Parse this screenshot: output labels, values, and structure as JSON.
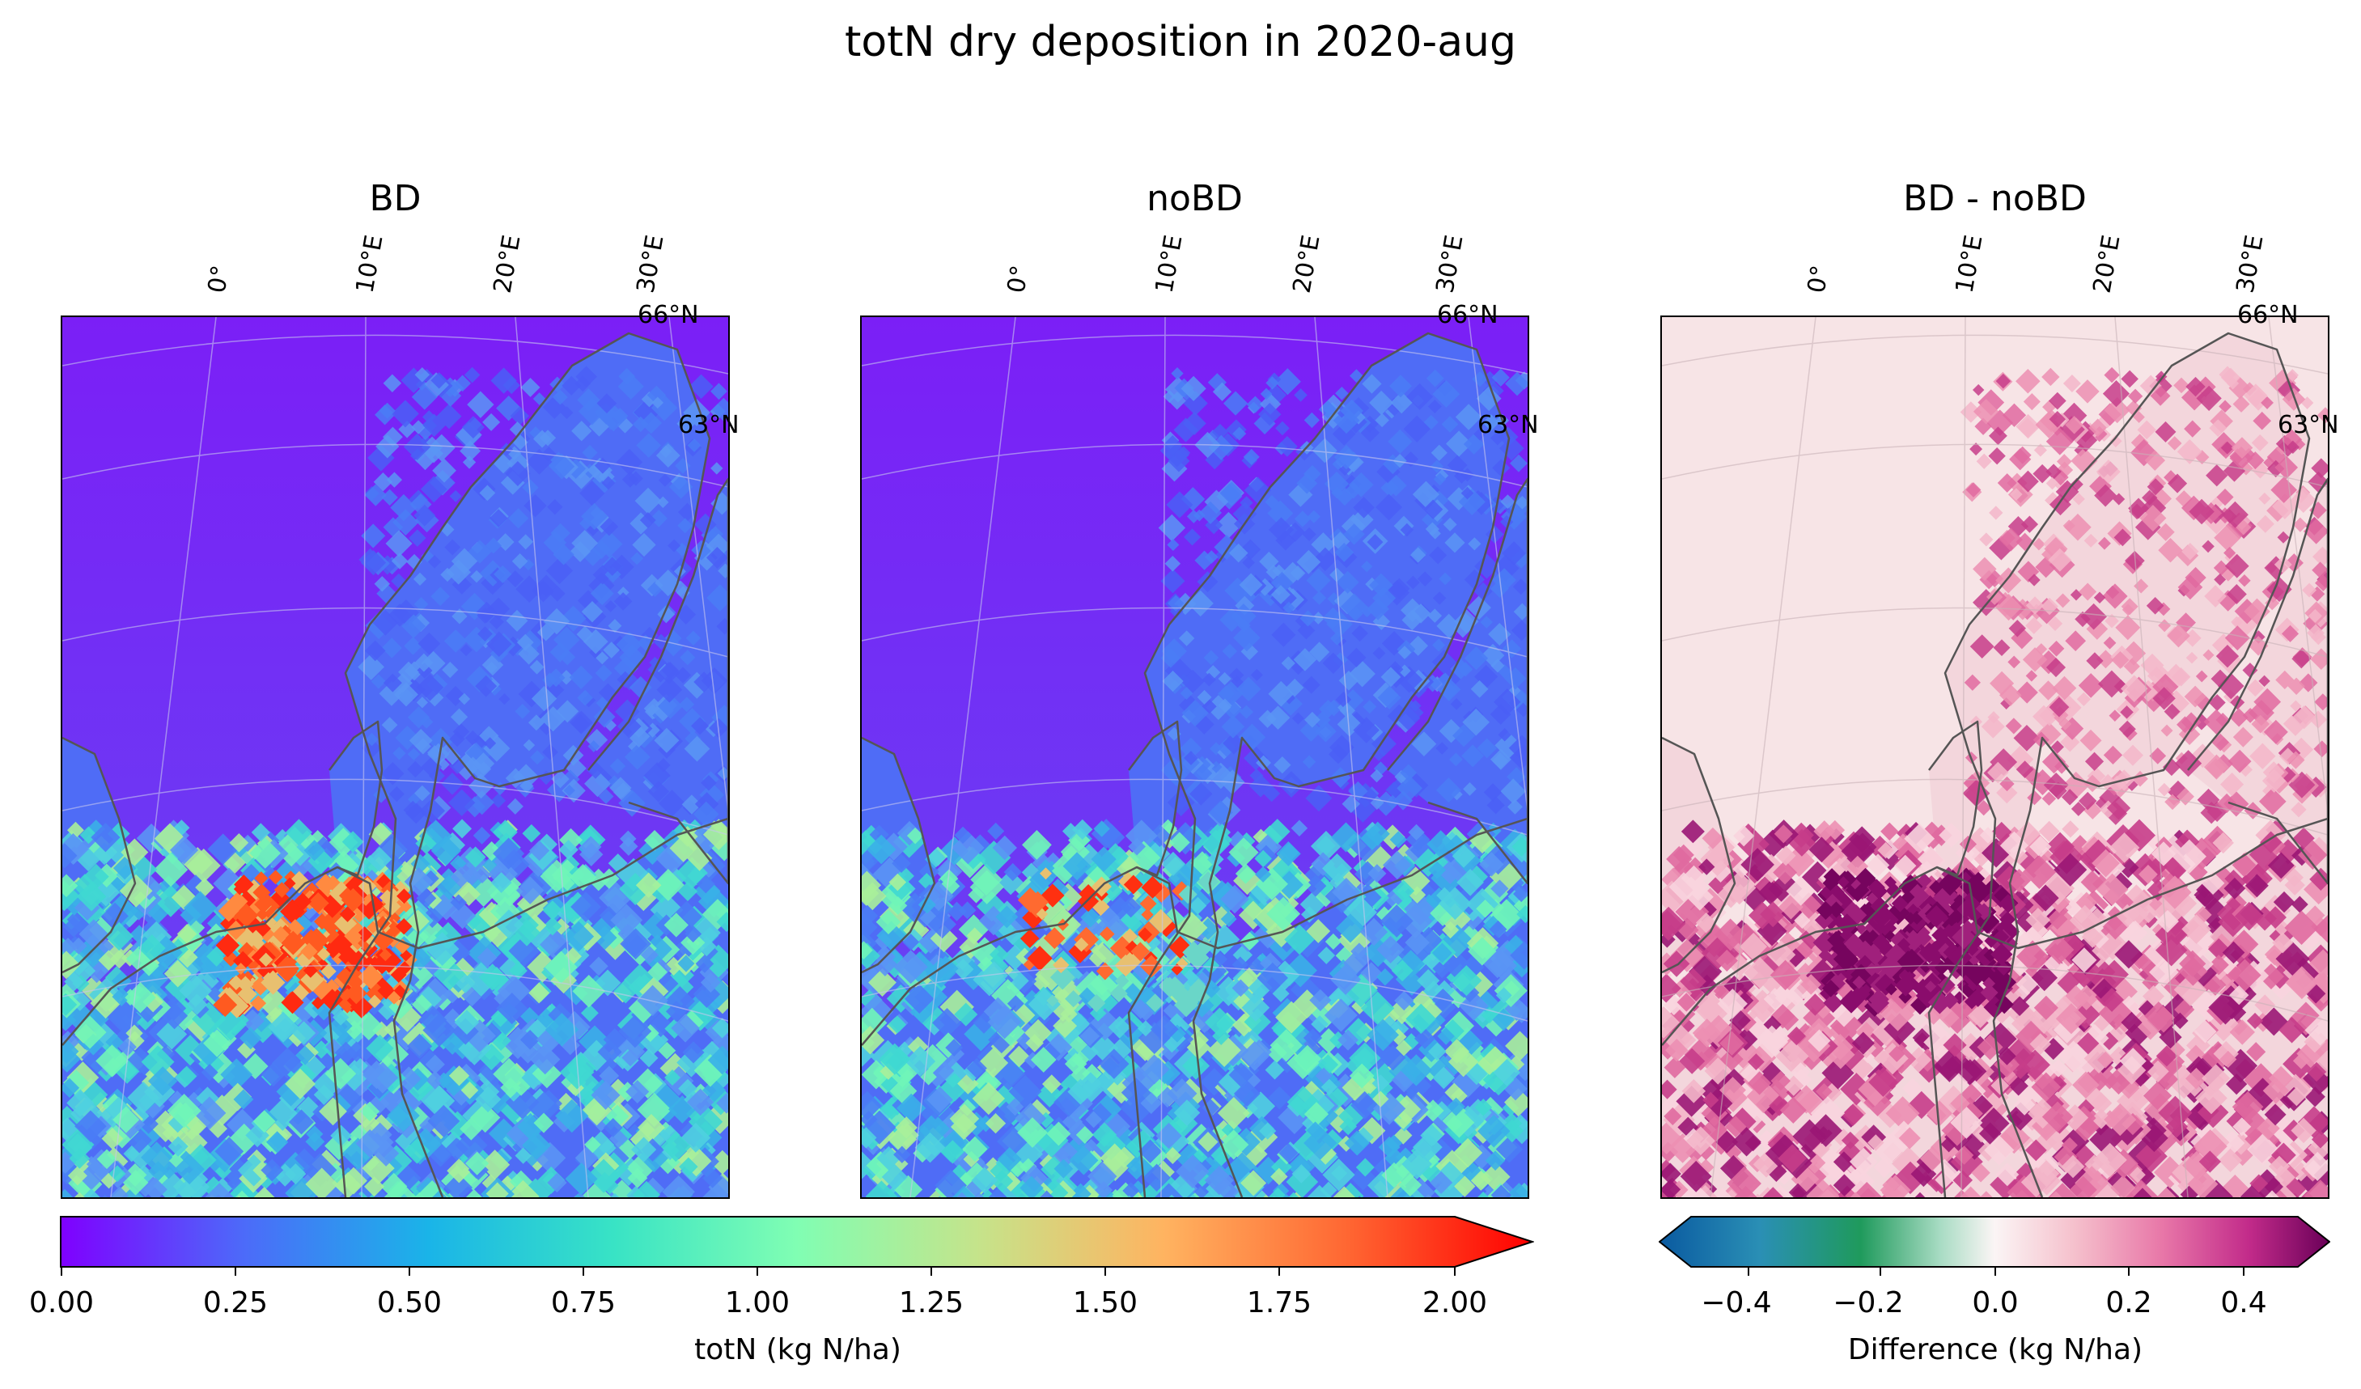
{
  "title": "totN dry deposition in 2020-aug",
  "panels": [
    {
      "title": "BD"
    },
    {
      "title": "noBD"
    },
    {
      "title": "BD - noBD"
    }
  ],
  "gridlines": {
    "lon_labels": [
      "0°",
      "10°E",
      "20°E",
      "30°E"
    ],
    "lat_labels": [
      "66°N",
      "63°N"
    ]
  },
  "colorbar_main": {
    "label": "totN (kg N/ha)",
    "colormap": "rainbow",
    "ticks": [
      "0.00",
      "0.25",
      "0.50",
      "0.75",
      "1.00",
      "1.25",
      "1.50",
      "1.75",
      "2.00"
    ],
    "range": [
      0,
      2.0
    ],
    "extend": "max"
  },
  "colorbar_diff": {
    "label": "Difference (kg N/ha)",
    "colormap": "diverging blue-green-white-pink-purple",
    "ticks": [
      "−0.4",
      "−0.2",
      "0.0",
      "0.2",
      "0.4"
    ],
    "range": [
      -0.5,
      0.5
    ],
    "extend": "both"
  },
  "colors": {
    "sea_low": "#7f2bf5",
    "land_low": "#4f6cf6",
    "land_mid": "#4fd0e0",
    "hot": "#ff1a00",
    "diff_bg": "#f7e4e6",
    "diff_high": "#76045e",
    "coastline": "#555555"
  }
}
